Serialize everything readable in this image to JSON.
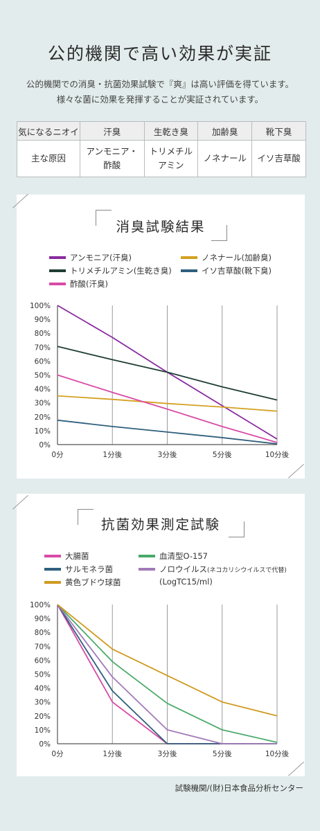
{
  "title": "公的機関で高い効果が実証",
  "intro": {
    "line1": "公的機関での消臭・抗菌効果試験で『爽』は高い評価を得ています。",
    "line2": "様々な菌に効果を発揮することが実証されています。"
  },
  "odor_table": {
    "header": [
      "気になるニオイ",
      "汗臭",
      "生乾き臭",
      "加齢臭",
      "靴下臭"
    ],
    "row_label": "主な原因",
    "causes": [
      [
        "アンモニア・",
        "酢酸"
      ],
      [
        "トリメチル",
        "アミン"
      ],
      [
        "ノネナール",
        ""
      ],
      [
        "イソ吉草酸",
        ""
      ]
    ]
  },
  "chart_data": [
    {
      "type": "line",
      "title": "消臭試験結果",
      "categories": [
        "0分",
        "1分後",
        "3分後",
        "5分後",
        "10分後"
      ],
      "ylim": [
        0,
        100
      ],
      "yticks": [
        "0%",
        "10%",
        "20%",
        "30%",
        "40%",
        "50%",
        "60%",
        "70%",
        "80%",
        "90%",
        "100%"
      ],
      "grid": "vertical",
      "series": [
        {
          "name": "アンモニア(汗臭)",
          "color": "#8a2aa0",
          "values": [
            100,
            77,
            52,
            28,
            4
          ]
        },
        {
          "name": "ノネナール(加齢臭)",
          "color": "#d4a020",
          "values": [
            35,
            32.5,
            29.5,
            27,
            24
          ]
        },
        {
          "name": "トリメチルアミン(生乾き臭)",
          "color": "#1f3d34",
          "values": [
            70.5,
            61,
            52,
            41.5,
            32
          ]
        },
        {
          "name": "イソ吉草酸(靴下臭)",
          "color": "#2f5f7d",
          "values": [
            17.5,
            13,
            9,
            5,
            0.5
          ]
        },
        {
          "name": "酢酸(汗臭)",
          "color": "#d94aa6",
          "values": [
            50,
            37.5,
            25.5,
            13,
            1.5
          ]
        }
      ]
    },
    {
      "type": "line",
      "title": "抗菌効果測定試験",
      "categories": [
        "0分",
        "1分後",
        "3分後",
        "5分後",
        "10分後"
      ],
      "ylim": [
        0,
        100
      ],
      "yticks": [
        "0%",
        "10%",
        "20%",
        "30%",
        "40%",
        "50%",
        "60%",
        "70%",
        "80%",
        "90%",
        "100%"
      ],
      "grid": "vertical",
      "series": [
        {
          "name": "大腸菌",
          "color": "#d94aa6",
          "values": [
            100,
            30,
            0,
            0,
            0
          ]
        },
        {
          "name": "血清型O-157",
          "color": "#4aaa6a",
          "values": [
            100,
            59,
            29,
            10,
            1
          ]
        },
        {
          "name": "サルモネラ菌",
          "color": "#2f5f7d",
          "values": [
            100,
            38,
            0,
            0,
            0
          ]
        },
        {
          "name": "ノロウイルス",
          "note": "(ネコカリシウイルスで代替)",
          "subline": "(LogTC15/ml)",
          "color": "#a27ab8",
          "values": [
            100,
            48,
            10,
            0,
            0
          ]
        },
        {
          "name": "黄色ブドウ球菌",
          "color": "#cf9a1e",
          "values": [
            100,
            68,
            49,
            30,
            20
          ]
        }
      ]
    }
  ],
  "footer": "試験機関/(財)日本食品分析センター"
}
